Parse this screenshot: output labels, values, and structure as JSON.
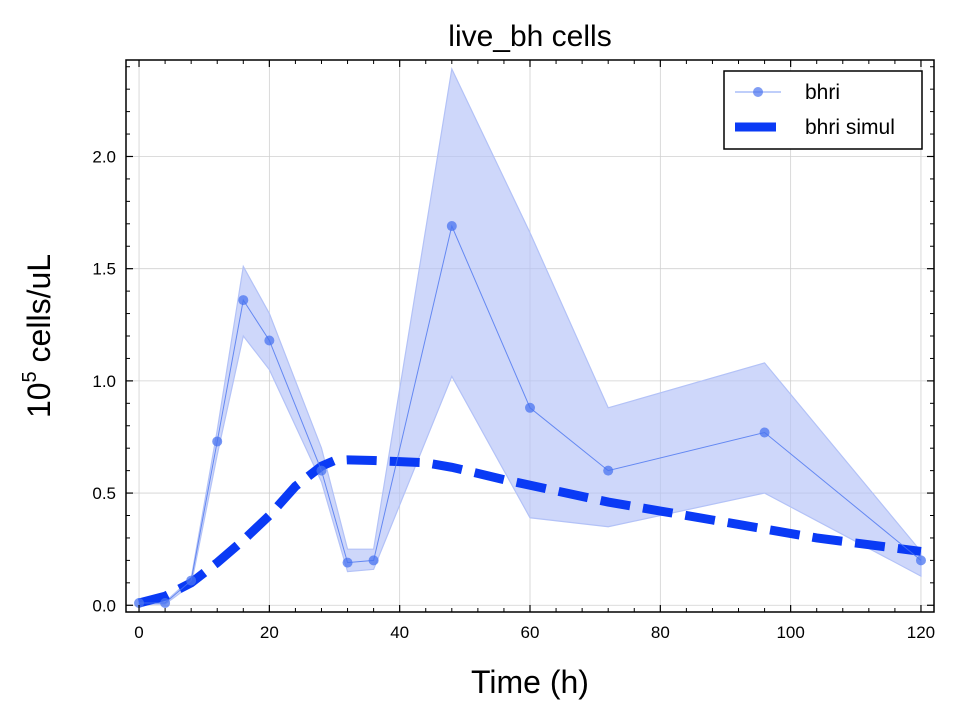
{
  "chart_data": {
    "type": "line",
    "title": "live_bh cells",
    "xlabel": "Time (h)",
    "ylabel": {
      "base": "10",
      "exponent": "5",
      "unit": " cells/uL"
    },
    "xlim": [
      -2,
      122
    ],
    "ylim": [
      -0.03,
      2.43
    ],
    "x_ticks": [
      0,
      20,
      40,
      60,
      80,
      100,
      120
    ],
    "y_ticks": [
      0.0,
      0.5,
      1.0,
      1.5,
      2.0
    ],
    "x_tick_labels": [
      "0",
      "20",
      "40",
      "60",
      "80",
      "100",
      "120"
    ],
    "y_tick_labels": [
      "0.0",
      "0.5",
      "1.0",
      "1.5",
      "2.0"
    ],
    "grid": true,
    "legend_position": "top-right",
    "series": [
      {
        "name": "bhri",
        "style": "line-markers",
        "color": "#4a74f0",
        "band_color": "#b3c2f7",
        "x": [
          0,
          4,
          8,
          12,
          16,
          20,
          28,
          32,
          36,
          48,
          60,
          72,
          96,
          120
        ],
        "y": [
          0.01,
          0.01,
          0.11,
          0.73,
          1.36,
          1.18,
          0.6,
          0.19,
          0.2,
          1.69,
          0.88,
          0.6,
          0.77,
          0.2
        ],
        "band_upper": [
          0.015,
          0.015,
          0.12,
          0.78,
          1.51,
          1.3,
          0.7,
          0.25,
          0.25,
          2.39,
          1.66,
          0.88,
          1.08,
          0.24
        ],
        "band_lower": [
          0.005,
          0.005,
          0.09,
          0.67,
          1.2,
          1.05,
          0.55,
          0.15,
          0.16,
          1.02,
          0.39,
          0.35,
          0.5,
          0.13
        ]
      },
      {
        "name": "bhri simul",
        "style": "dashed",
        "color": "#0a3af5",
        "x": [
          0,
          4,
          8,
          12,
          16,
          20,
          24,
          28,
          30,
          32,
          36,
          40,
          44,
          48,
          56,
          64,
          72,
          80,
          88,
          96,
          104,
          112,
          120
        ],
        "y": [
          0.01,
          0.04,
          0.1,
          0.19,
          0.29,
          0.4,
          0.53,
          0.62,
          0.645,
          0.648,
          0.645,
          0.64,
          0.635,
          0.615,
          0.56,
          0.51,
          0.46,
          0.42,
          0.38,
          0.34,
          0.3,
          0.27,
          0.24
        ]
      }
    ]
  }
}
